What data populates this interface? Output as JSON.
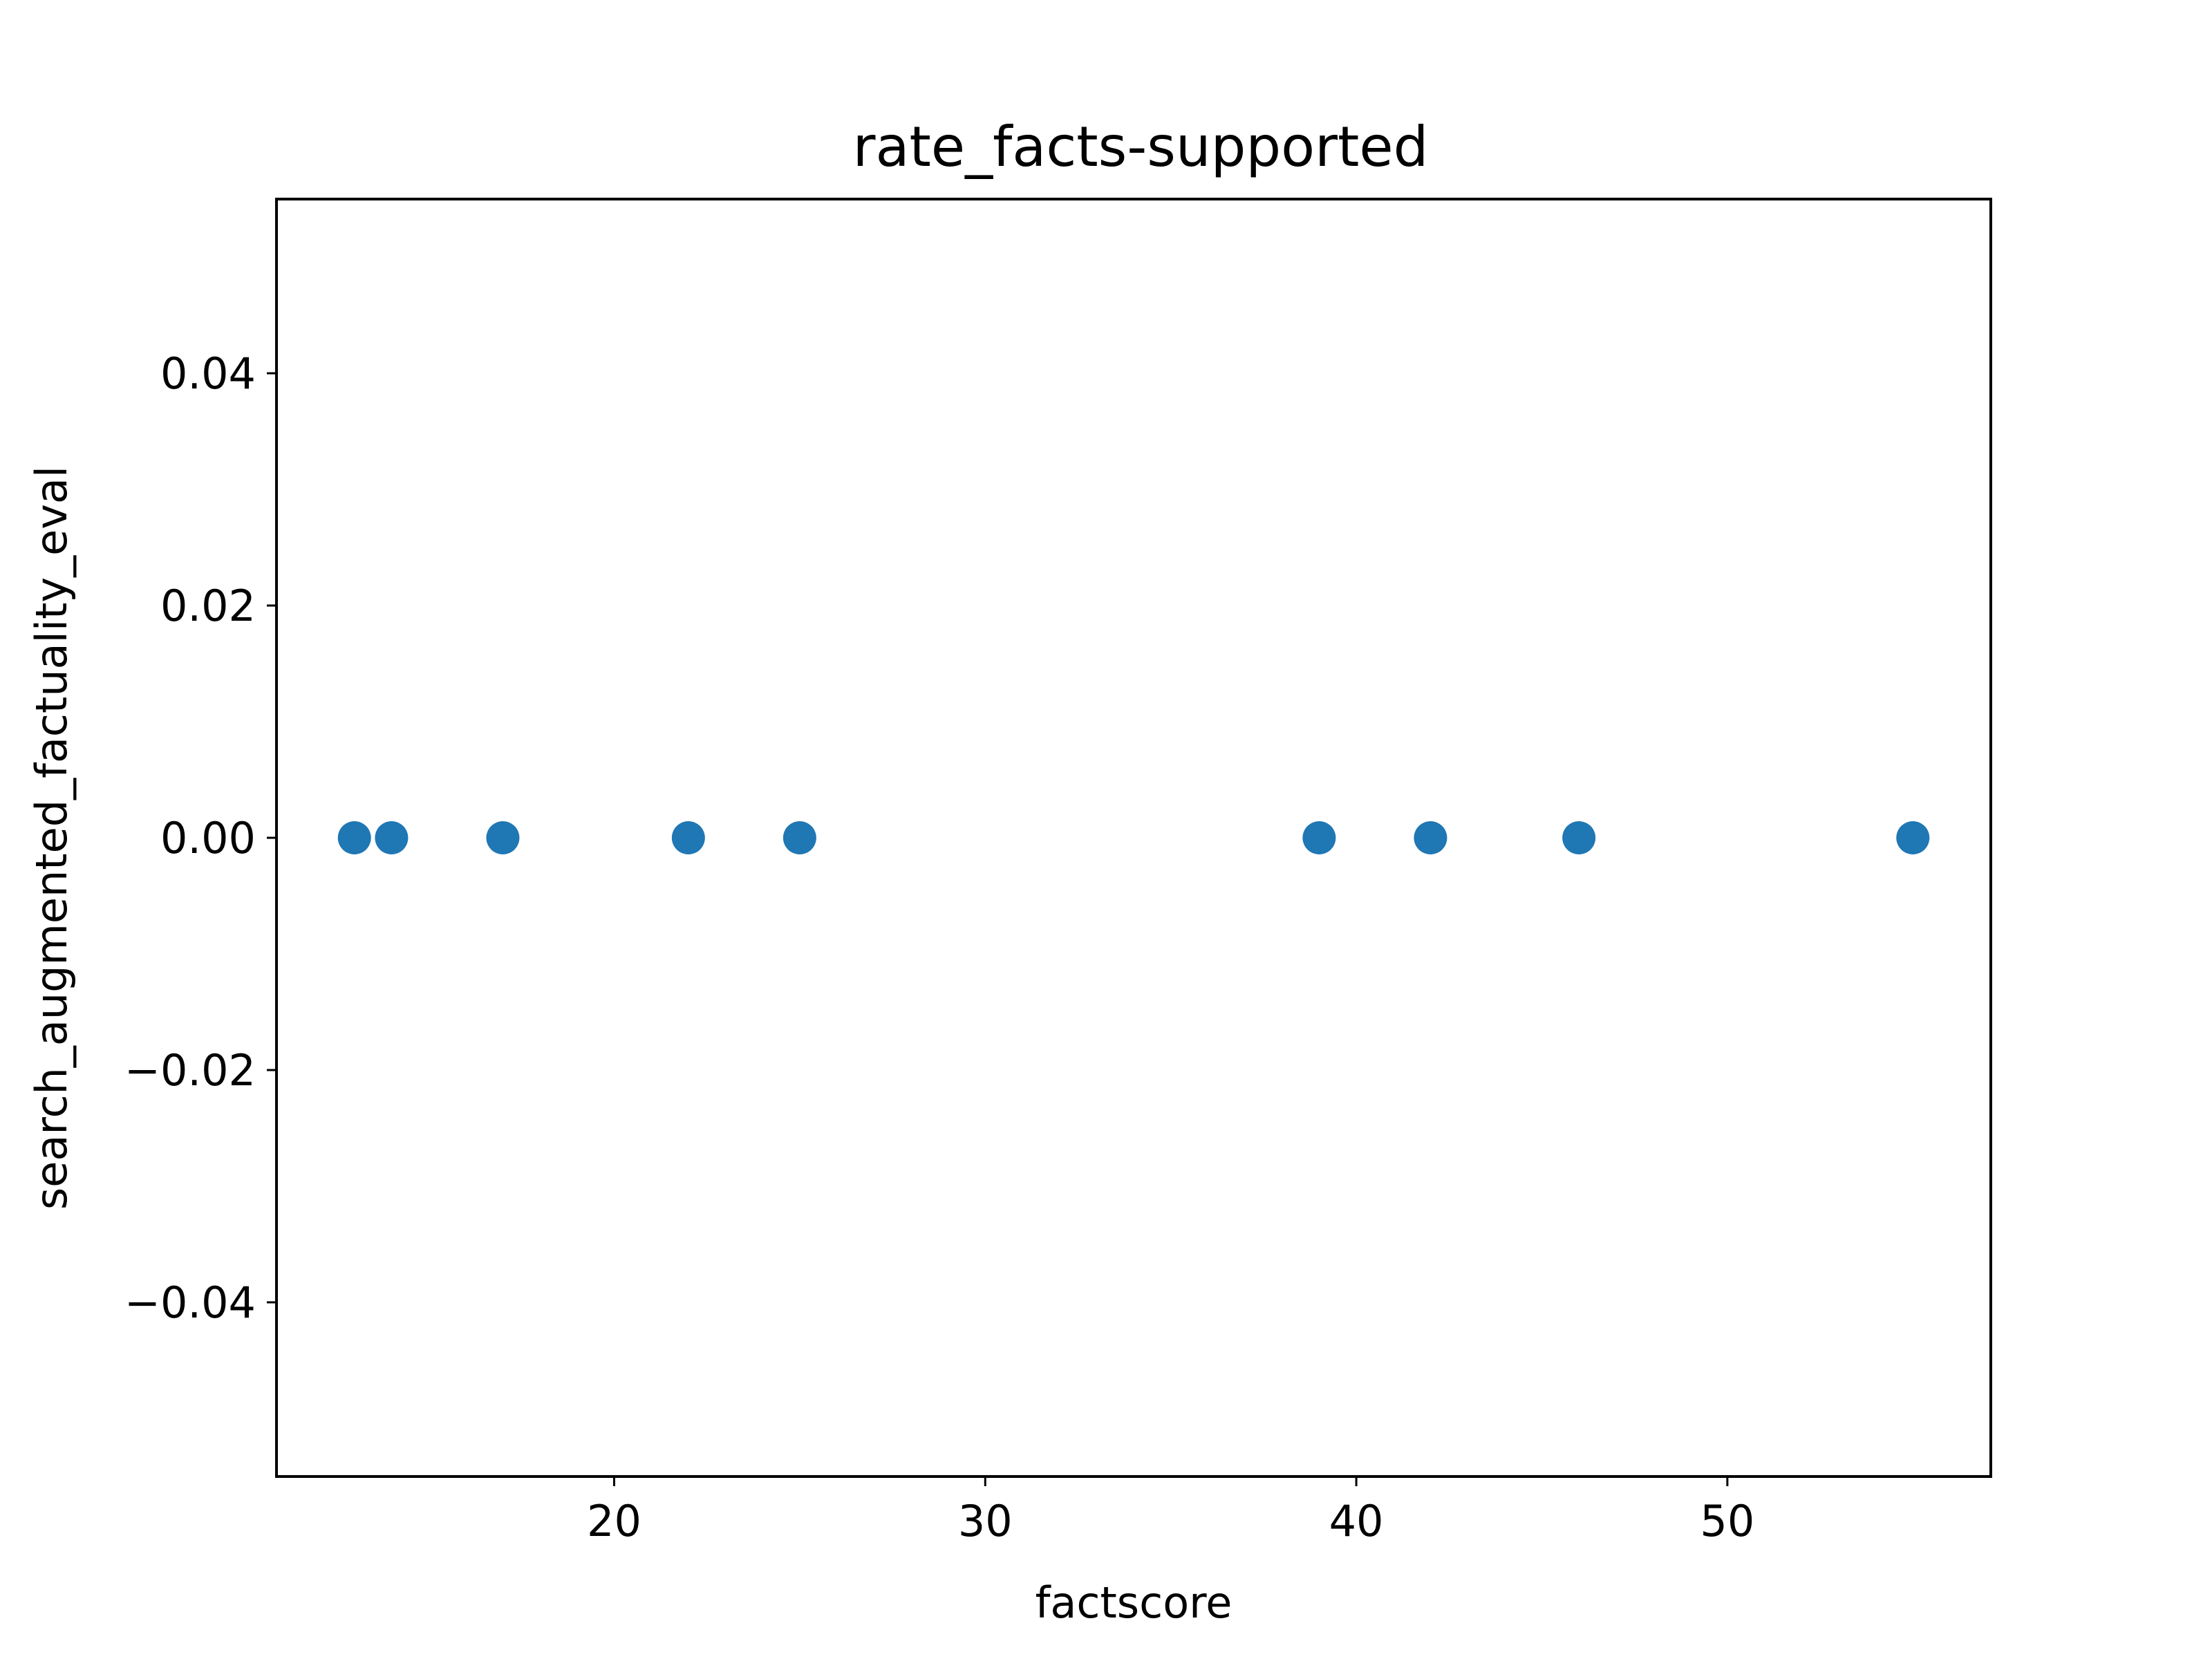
{
  "chart_data": {
    "type": "scatter",
    "title": "rate_facts-supported",
    "xlabel": "factscore",
    "ylabel": "search_augmented_factuality_eval",
    "xlim": [
      10.9,
      57.1
    ],
    "ylim": [
      -0.055,
      0.055
    ],
    "xticks": [
      20,
      30,
      40,
      50
    ],
    "xtick_labels": [
      "20",
      "30",
      "40",
      "50"
    ],
    "yticks": [
      0.04,
      0.02,
      0.0,
      -0.02,
      -0.04
    ],
    "ytick_labels": [
      "0.04",
      "0.02",
      "0.00",
      "−0.02",
      "−0.04"
    ],
    "grid": false,
    "legend": "none",
    "marker_color": "#1f77b4",
    "series": [
      {
        "x": [
          13,
          14,
          17,
          22,
          25,
          39,
          42,
          46,
          55
        ],
        "y": [
          0,
          0,
          0,
          0,
          0,
          0,
          0,
          0,
          0
        ]
      }
    ]
  }
}
